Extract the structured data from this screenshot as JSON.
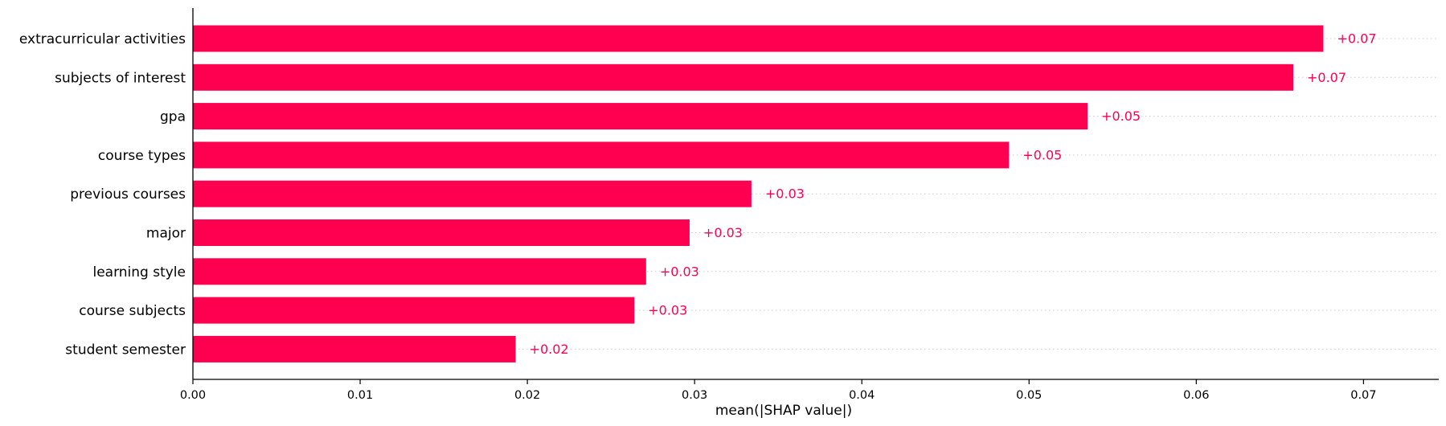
{
  "chart_data": {
    "type": "bar",
    "orientation": "horizontal",
    "categories": [
      "extracurricular activities",
      "subjects of interest",
      "gpa",
      "course types",
      "previous courses",
      "major",
      "learning style",
      "course subjects",
      "student semester"
    ],
    "values": [
      0.0676,
      0.0658,
      0.0535,
      0.0488,
      0.0334,
      0.0297,
      0.0271,
      0.0264,
      0.0193
    ],
    "data_labels": [
      "+0.07",
      "+0.07",
      "+0.05",
      "+0.05",
      "+0.03",
      "+0.03",
      "+0.03",
      "+0.03",
      "+0.02"
    ],
    "xlabel": "mean(|SHAP value|)",
    "ylabel": "",
    "title": "",
    "xlim": [
      0,
      0.0745
    ],
    "xticks": [
      0,
      0.01,
      0.02,
      0.03,
      0.04,
      0.05,
      0.06,
      0.07
    ],
    "xtick_labels": [
      "0.00",
      "0.01",
      "0.02",
      "0.03",
      "0.04",
      "0.05",
      "0.06",
      "0.07"
    ],
    "grid": "dotted horizontal guide lines per bar",
    "legend": "none",
    "colors": {
      "bar": "#ff0051",
      "label": "#ff0051",
      "axis": "#000000",
      "guide": "#cccccc"
    }
  }
}
